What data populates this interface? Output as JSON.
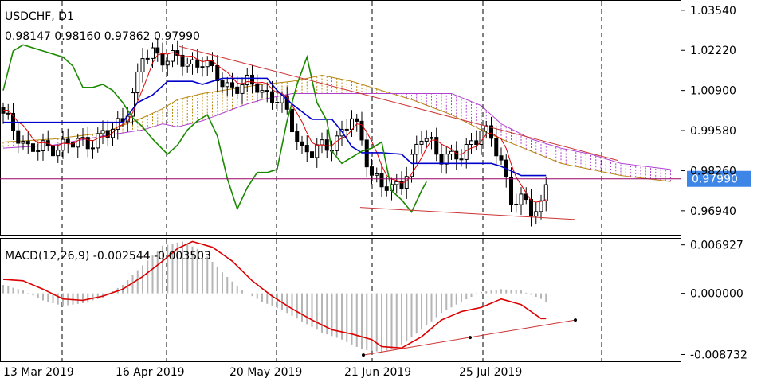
{
  "chart_data": {
    "type": "candlestick",
    "symbol_label": "USDCHF, D1",
    "ohlc_label": "0.98147 0.98160 0.97862 0.97990",
    "current_price_label": "0.97990",
    "current_price": 0.9799,
    "y_range": [
      0.9615,
      1.0385
    ],
    "y_ticks": [
      "1.03540",
      "1.02220",
      "1.00900",
      "0.99580",
      "0.98260",
      "0.96940"
    ],
    "x_ticks": [
      "13 Mar 2019",
      "16 Apr 2019",
      "20 May 2019",
      "21 Jun 2019",
      "25 Jul 2019"
    ],
    "macd": {
      "label": "MACD(12,26,9) -0.002544 -0.003503",
      "y_range": [
        -0.0097,
        0.0078
      ],
      "y_ticks": [
        "0.006927",
        "0.000000",
        "-0.008732"
      ]
    },
    "colors": {
      "green_line": "#1a8a00",
      "blue_line": "#0000cc",
      "red_line": "#dd0000",
      "cloud_orange": "#b8860b",
      "cloud_purple": "#b040d0",
      "trend_line": "#cc3333",
      "price_tag": "#3d85e6",
      "hist": "#b5b5b5"
    }
  }
}
